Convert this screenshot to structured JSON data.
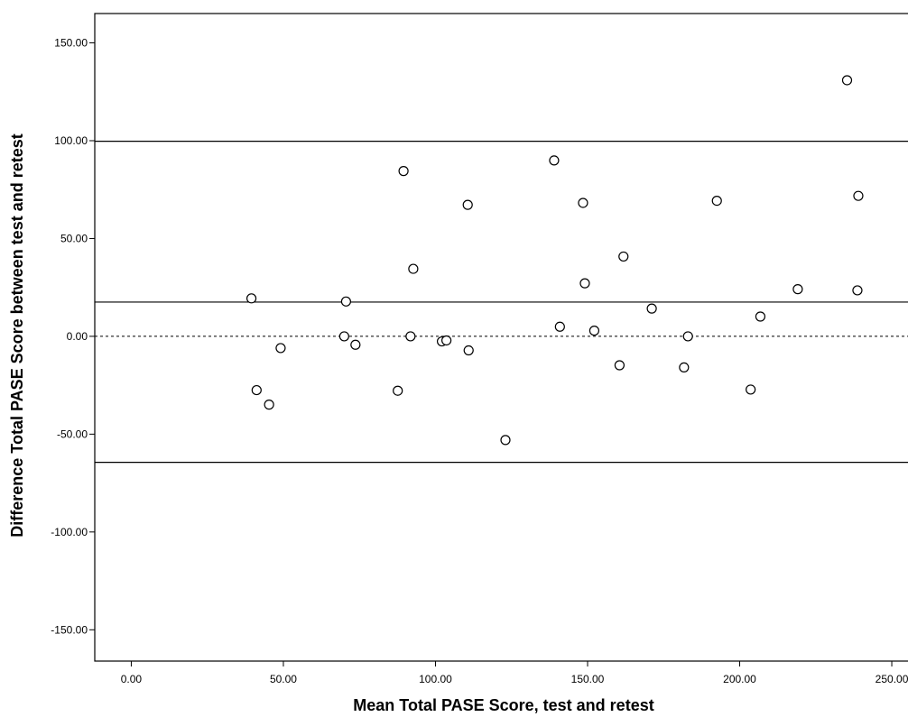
{
  "chart_data": {
    "type": "scatter",
    "title": "",
    "xlabel": "Mean Total PASE Score, test and retest",
    "ylabel": "Difference Total PASE Score between test and retest",
    "xlim": [
      -12,
      258
    ],
    "ylim": [
      -166,
      165
    ],
    "x_ticks": [
      0,
      50,
      100,
      150,
      200,
      250
    ],
    "x_tick_labels": [
      "0.00",
      "50.00",
      "100.00",
      "150.00",
      "200.00",
      "250.00"
    ],
    "y_ticks": [
      150,
      100,
      50,
      0,
      -50,
      -100,
      -150
    ],
    "y_tick_labels": [
      "150.00",
      "100.00",
      "50.00",
      "0.00",
      "-50.00",
      "-100.00",
      "-150.00"
    ],
    "grid": false,
    "reference_lines": [
      {
        "y": 99.7,
        "style": "solid"
      },
      {
        "y": 17.5,
        "style": "solid"
      },
      {
        "y": 0,
        "style": "dashed"
      },
      {
        "y": -64.4,
        "style": "solid"
      }
    ],
    "points": [
      {
        "x": 39.5,
        "y": 19.4
      },
      {
        "x": 41.2,
        "y": -27.5
      },
      {
        "x": 45.3,
        "y": -34.9
      },
      {
        "x": 49.1,
        "y": -6.0
      },
      {
        "x": 70.0,
        "y": 0.0
      },
      {
        "x": 70.6,
        "y": 17.8
      },
      {
        "x": 73.7,
        "y": -4.3
      },
      {
        "x": 87.6,
        "y": -27.8
      },
      {
        "x": 89.5,
        "y": 84.5
      },
      {
        "x": 91.8,
        "y": 0.0
      },
      {
        "x": 92.7,
        "y": 34.5
      },
      {
        "x": 102.1,
        "y": -2.6
      },
      {
        "x": 103.6,
        "y": -2.1
      },
      {
        "x": 110.6,
        "y": 67.2
      },
      {
        "x": 110.9,
        "y": -7.2
      },
      {
        "x": 123.0,
        "y": -53.0
      },
      {
        "x": 139.0,
        "y": 89.9
      },
      {
        "x": 140.9,
        "y": 4.9
      },
      {
        "x": 148.5,
        "y": 68.2
      },
      {
        "x": 149.1,
        "y": 27.1
      },
      {
        "x": 152.2,
        "y": 2.9
      },
      {
        "x": 160.5,
        "y": -14.8
      },
      {
        "x": 161.8,
        "y": 40.8
      },
      {
        "x": 171.1,
        "y": 14.2
      },
      {
        "x": 181.7,
        "y": -15.9
      },
      {
        "x": 183.0,
        "y": 0.0
      },
      {
        "x": 192.5,
        "y": 69.3
      },
      {
        "x": 203.6,
        "y": -27.2
      },
      {
        "x": 206.8,
        "y": 10.1
      },
      {
        "x": 219.1,
        "y": 24.1
      },
      {
        "x": 235.3,
        "y": 130.9
      },
      {
        "x": 238.7,
        "y": 23.5
      },
      {
        "x": 239.0,
        "y": 71.8
      }
    ]
  }
}
